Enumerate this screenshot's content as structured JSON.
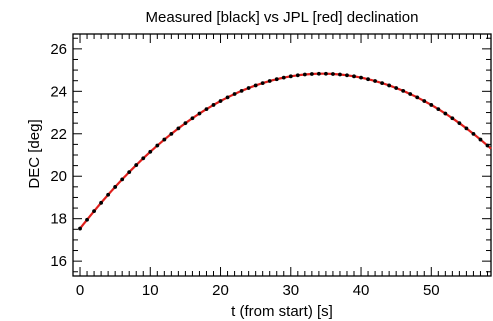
{
  "chart_data": {
    "type": "scatter",
    "title": "Measured [black] vs JPL [red] declination",
    "xlabel": "t (from start) [s]",
    "ylabel": "DEC [deg]",
    "xlim": [
      -1,
      58.5
    ],
    "ylim": [
      15.3,
      26.7
    ],
    "xticks": [
      0,
      10,
      20,
      30,
      40,
      50
    ],
    "yticks": [
      16,
      18,
      20,
      22,
      24,
      26
    ],
    "grid": false,
    "legend": "none",
    "model": {
      "peak_t": 34.5,
      "peak_dec": 24.83,
      "curvature": 0.00613
    },
    "sample_step": 1,
    "series": [
      {
        "name": "Measured",
        "style": "points",
        "color": "#000000"
      },
      {
        "name": "JPL",
        "style": "line",
        "color": "#e0201c"
      }
    ]
  }
}
